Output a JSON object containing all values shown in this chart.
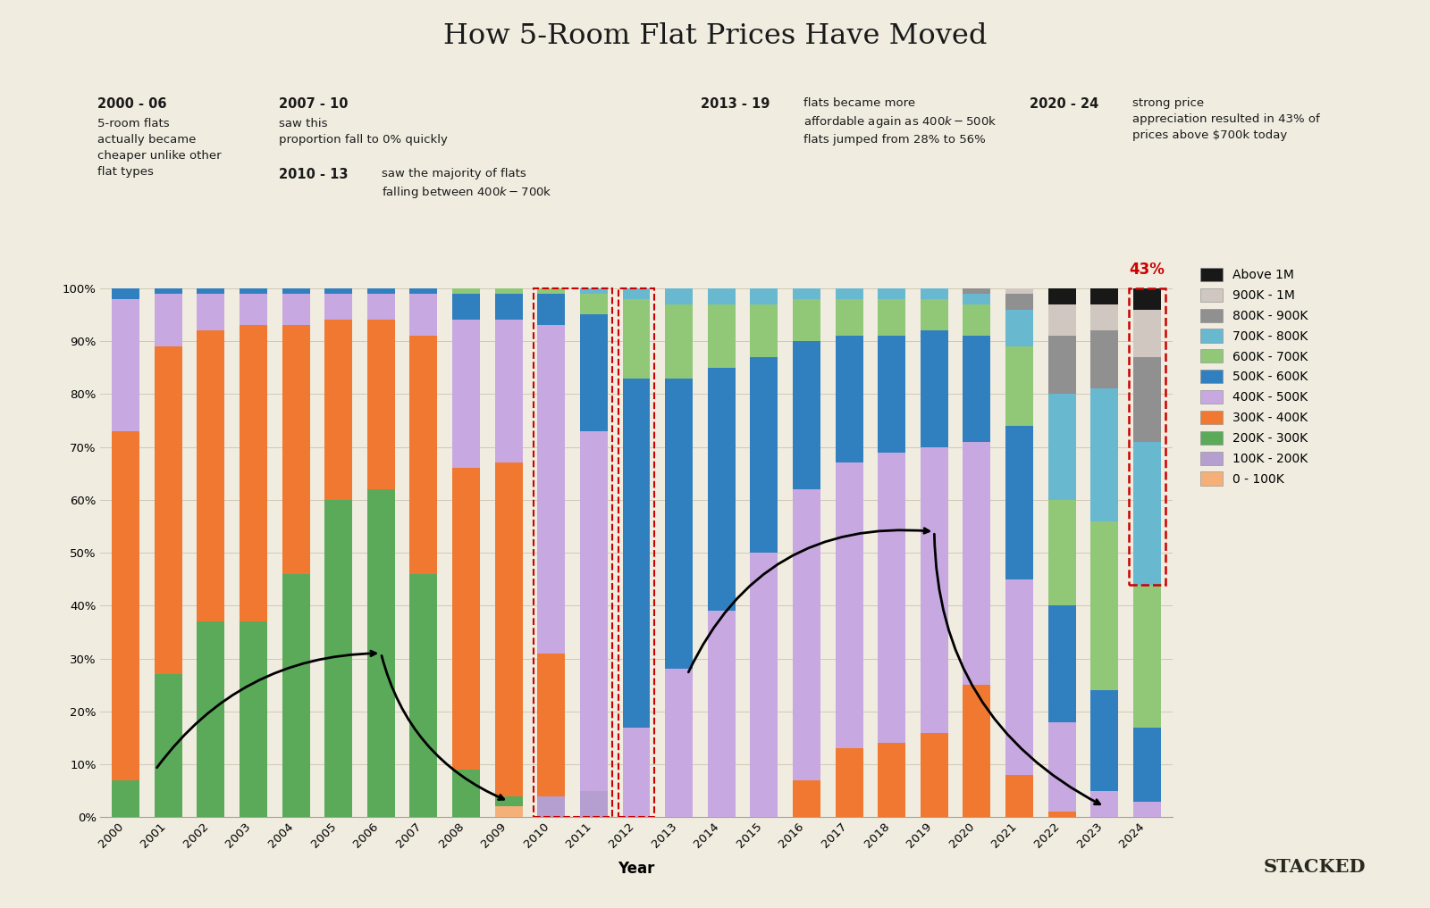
{
  "title": "How 5-Room Flat Prices Have Moved",
  "xlabel": "Year",
  "background_color": "#f0ece0",
  "years": [
    2000,
    2001,
    2002,
    2003,
    2004,
    2005,
    2006,
    2007,
    2008,
    2009,
    2010,
    2011,
    2012,
    2013,
    2014,
    2015,
    2016,
    2017,
    2018,
    2019,
    2020,
    2021,
    2022,
    2023,
    2024
  ],
  "categories": [
    "0 - 100K",
    "100K - 200K",
    "200K - 300K",
    "300K - 400K",
    "400K - 500K",
    "500K - 600K",
    "600K - 700K",
    "700K - 800K",
    "800K - 900K",
    "900K - 1M",
    "Above 1M"
  ],
  "colors": {
    "0 - 100K": "#f5b07a",
    "100K - 200K": "#b59fd0",
    "200K - 300K": "#5aaa5a",
    "300K - 400K": "#f07830",
    "400K - 500K": "#c8a8e0",
    "500K - 600K": "#3080c0",
    "600K - 700K": "#90c878",
    "700K - 800K": "#68b8d0",
    "800K - 900K": "#909090",
    "900K - 1M": "#d0c8c0",
    "Above 1M": "#181818"
  },
  "data": {
    "2000": [
      0,
      0,
      7,
      66,
      25,
      2,
      0,
      0,
      0,
      0,
      0
    ],
    "2001": [
      0,
      0,
      27,
      62,
      10,
      1,
      0,
      0,
      0,
      0,
      0
    ],
    "2002": [
      0,
      0,
      37,
      55,
      7,
      1,
      0,
      0,
      0,
      0,
      0
    ],
    "2003": [
      0,
      0,
      37,
      56,
      6,
      1,
      0,
      0,
      0,
      0,
      0
    ],
    "2004": [
      0,
      0,
      46,
      47,
      6,
      1,
      0,
      0,
      0,
      0,
      0
    ],
    "2005": [
      0,
      0,
      60,
      34,
      5,
      1,
      0,
      0,
      0,
      0,
      0
    ],
    "2006": [
      0,
      0,
      62,
      32,
      5,
      1,
      0,
      0,
      0,
      0,
      0
    ],
    "2007": [
      0,
      0,
      46,
      45,
      8,
      1,
      0,
      0,
      0,
      0,
      0
    ],
    "2008": [
      0,
      0,
      9,
      57,
      28,
      5,
      1,
      0,
      0,
      0,
      0
    ],
    "2009": [
      2,
      0,
      2,
      63,
      27,
      5,
      1,
      0,
      0,
      0,
      0
    ],
    "2010": [
      0,
      4,
      0,
      27,
      62,
      6,
      1,
      0,
      0,
      0,
      0
    ],
    "2011": [
      0,
      5,
      0,
      0,
      68,
      22,
      4,
      1,
      0,
      0,
      0
    ],
    "2012": [
      0,
      0,
      0,
      0,
      17,
      66,
      15,
      2,
      0,
      0,
      0
    ],
    "2013": [
      0,
      0,
      0,
      0,
      28,
      55,
      14,
      3,
      0,
      0,
      0
    ],
    "2014": [
      0,
      0,
      0,
      0,
      39,
      46,
      12,
      3,
      0,
      0,
      0
    ],
    "2015": [
      0,
      0,
      0,
      0,
      50,
      37,
      10,
      3,
      0,
      0,
      0
    ],
    "2016": [
      0,
      0,
      0,
      7,
      55,
      28,
      8,
      2,
      0,
      0,
      0
    ],
    "2017": [
      0,
      0,
      0,
      13,
      54,
      24,
      7,
      2,
      0,
      0,
      0
    ],
    "2018": [
      0,
      0,
      0,
      14,
      55,
      22,
      7,
      2,
      0,
      0,
      0
    ],
    "2019": [
      0,
      0,
      0,
      16,
      54,
      22,
      6,
      2,
      0,
      0,
      0
    ],
    "2020": [
      0,
      0,
      0,
      25,
      46,
      20,
      6,
      2,
      1,
      0,
      0
    ],
    "2021": [
      0,
      0,
      0,
      8,
      37,
      29,
      15,
      7,
      3,
      1,
      0
    ],
    "2022": [
      0,
      0,
      0,
      1,
      17,
      22,
      20,
      20,
      11,
      6,
      3
    ],
    "2023": [
      0,
      0,
      0,
      0,
      5,
      19,
      32,
      25,
      11,
      5,
      3
    ],
    "2024": [
      0,
      0,
      0,
      0,
      3,
      14,
      27,
      27,
      16,
      9,
      4
    ]
  },
  "legend_labels": [
    "Above 1M",
    "900K - 1M",
    "800K - 900K",
    "700K - 800K",
    "600K - 700K",
    "500K - 600K",
    "400K - 500K",
    "300K - 400K",
    "200K - 300K",
    "100K - 200K",
    "0 - 100K"
  ],
  "legend_colors": [
    "#181818",
    "#d0c8c0",
    "#909090",
    "#68b8d0",
    "#90c878",
    "#3080c0",
    "#c8a8e0",
    "#f07830",
    "#5aaa5a",
    "#b59fd0",
    "#f5b07a"
  ]
}
